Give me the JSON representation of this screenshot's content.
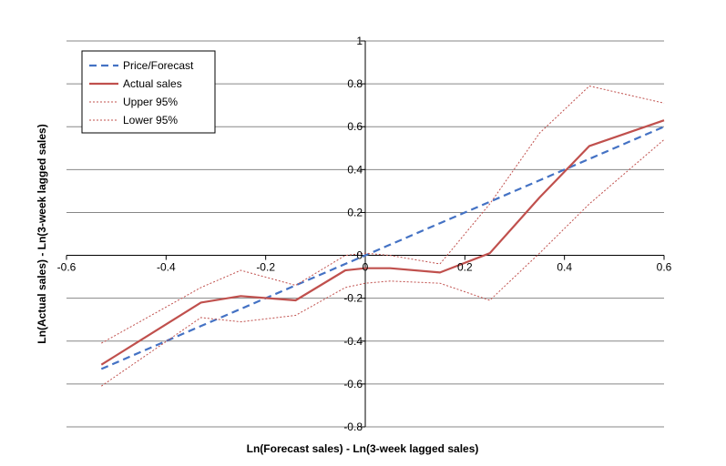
{
  "chart_data": {
    "type": "line",
    "title": "",
    "xlabel": "Ln(Forecast sales) - Ln(3-week lagged sales)",
    "ylabel": "Ln(Actual sales) - Ln(3-week lagged sales)",
    "xlim": [
      -0.6,
      0.6
    ],
    "ylim": [
      -0.8,
      1.0
    ],
    "xticks": [
      "-0.6",
      "-0.4",
      "-0.2",
      "0",
      "0.2",
      "0.4",
      "0.6"
    ],
    "yticks": [
      "-0.8",
      "-0.6",
      "-0.4",
      "-0.2",
      "0",
      "0.2",
      "0.4",
      "0.6",
      "0.8",
      "1"
    ],
    "grid": "horizontal",
    "legend_position": "top-left",
    "series": [
      {
        "name": "Price/Forecast",
        "color": "#4472C4",
        "style": "dashed",
        "x": [
          -0.53,
          -0.34,
          -0.25,
          -0.15,
          -0.05,
          0.0,
          0.05,
          0.15,
          0.25,
          0.35,
          0.45,
          0.6
        ],
        "y": [
          -0.53,
          -0.34,
          -0.25,
          -0.15,
          -0.05,
          0.0,
          0.05,
          0.15,
          0.25,
          0.35,
          0.45,
          0.6
        ]
      },
      {
        "name": "Actual sales",
        "color": "#C0504D",
        "style": "solid",
        "x": [
          -0.53,
          -0.33,
          -0.25,
          -0.14,
          -0.04,
          0.0,
          0.05,
          0.15,
          0.25,
          0.35,
          0.45,
          0.6
        ],
        "y": [
          -0.51,
          -0.22,
          -0.19,
          -0.21,
          -0.07,
          -0.06,
          -0.06,
          -0.08,
          0.01,
          0.27,
          0.51,
          0.63
        ]
      },
      {
        "name": "Upper 95%",
        "color": "#C0504D",
        "style": "dotted",
        "x": [
          -0.53,
          -0.33,
          -0.25,
          -0.14,
          -0.04,
          0.0,
          0.05,
          0.15,
          0.25,
          0.35,
          0.45,
          0.6
        ],
        "y": [
          -0.41,
          -0.15,
          -0.07,
          -0.14,
          0.0,
          0.01,
          0.0,
          -0.04,
          0.24,
          0.57,
          0.79,
          0.71
        ]
      },
      {
        "name": "Lower 95%",
        "color": "#C0504D",
        "style": "dotted",
        "x": [
          -0.53,
          -0.33,
          -0.25,
          -0.14,
          -0.04,
          0.0,
          0.05,
          0.15,
          0.25,
          0.35,
          0.45,
          0.6
        ],
        "y": [
          -0.61,
          -0.29,
          -0.31,
          -0.28,
          -0.15,
          -0.13,
          -0.12,
          -0.13,
          -0.21,
          0.01,
          0.24,
          0.54
        ]
      }
    ]
  }
}
